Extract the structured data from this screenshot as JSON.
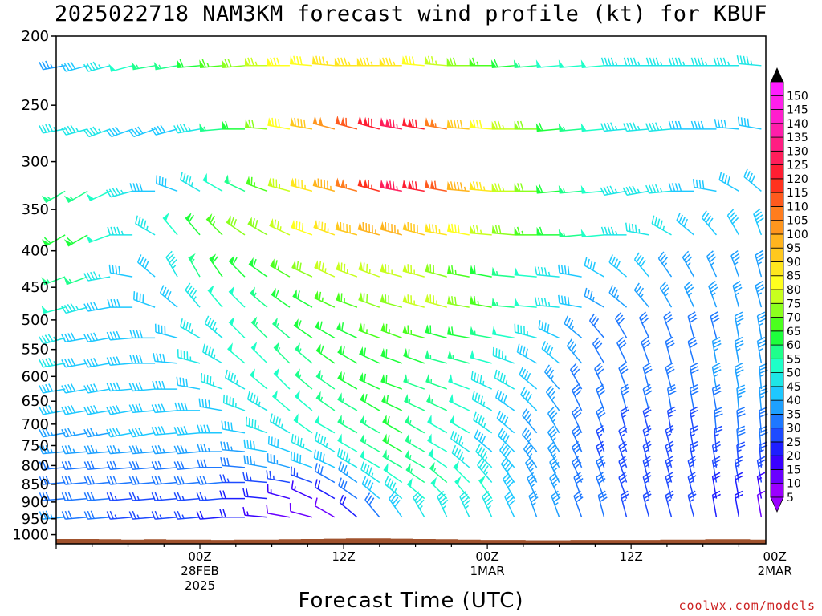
{
  "title": "2025022718 NAM3KM forecast wind profile (kt) for KBUF",
  "credit": "coolwx.com/models",
  "colors": {
    "ground": "#a0522d",
    "credit": "#cc2222"
  },
  "chart_data": {
    "type": "wind-barb-time-height",
    "xlabel": "Forecast Time (UTC)",
    "ylabel": "",
    "y_axis_reversed_log_pressure": true,
    "y_ticks": [
      "200",
      "250",
      "300",
      "350",
      "400",
      "450",
      "500",
      "550",
      "600",
      "650",
      "700",
      "750",
      "800",
      "850",
      "900",
      "950",
      "1000"
    ],
    "y_range_hPa": [
      200,
      1030
    ],
    "x_range_hours": [
      -16,
      63
    ],
    "x_ticks": [
      {
        "hour": 0,
        "lines": [
          "00Z",
          "28FEB",
          "2025"
        ]
      },
      {
        "hour": 16,
        "lines": [
          "12Z"
        ]
      },
      {
        "hour": 32,
        "lines": [
          "00Z",
          "1MAR"
        ]
      },
      {
        "hour": 48,
        "lines": [
          "12Z"
        ]
      },
      {
        "hour": 64,
        "lines": [
          "00Z",
          "2MAR"
        ]
      }
    ],
    "colorbar": {
      "units": "kt",
      "levels": [
        5,
        10,
        15,
        20,
        25,
        30,
        35,
        40,
        45,
        50,
        55,
        60,
        65,
        70,
        75,
        80,
        85,
        90,
        95,
        100,
        105,
        110,
        115,
        120,
        125,
        130,
        135,
        140,
        145,
        150
      ]
    },
    "wind_levels_hPa": [
      220,
      270,
      330,
      380,
      435,
      480,
      530,
      575,
      625,
      670,
      720,
      765,
      805,
      845,
      890,
      945
    ],
    "wind_times_hours": [
      -15,
      -12.5,
      -10,
      -7.5,
      -5,
      -2.5,
      0,
      2.5,
      5,
      7.5,
      10,
      12.5,
      15,
      17.5,
      20,
      22.5,
      25,
      27.5,
      30,
      32.5,
      35,
      37.5,
      40,
      42.5,
      45,
      47.5,
      50,
      52.5,
      55,
      57.5,
      60,
      62.5
    ],
    "wind_speed_kt_by_level": [
      [
        35,
        40,
        45,
        50,
        55,
        55,
        60,
        65,
        70,
        75,
        80,
        80,
        85,
        85,
        85,
        85,
        80,
        75,
        70,
        65,
        60,
        55,
        50,
        50,
        50,
        45,
        45,
        45,
        45,
        45,
        45,
        45
      ],
      [
        45,
        45,
        45,
        40,
        40,
        40,
        45,
        55,
        60,
        70,
        80,
        90,
        100,
        110,
        120,
        125,
        120,
        105,
        90,
        80,
        75,
        70,
        60,
        55,
        50,
        45,
        45,
        45,
        40,
        40,
        40,
        40
      ],
      [
        55,
        55,
        50,
        45,
        40,
        40,
        45,
        50,
        55,
        65,
        75,
        85,
        95,
        105,
        115,
        125,
        120,
        110,
        95,
        85,
        75,
        70,
        60,
        55,
        50,
        45,
        45,
        45,
        40,
        40,
        40,
        40
      ],
      [
        60,
        60,
        50,
        45,
        45,
        50,
        60,
        65,
        70,
        70,
        75,
        80,
        85,
        90,
        95,
        95,
        90,
        85,
        80,
        75,
        70,
        65,
        60,
        55,
        50,
        45,
        45,
        45,
        40,
        40,
        40,
        40
      ],
      [
        55,
        55,
        45,
        40,
        40,
        45,
        55,
        60,
        60,
        60,
        65,
        70,
        75,
        75,
        75,
        75,
        75,
        70,
        65,
        60,
        55,
        50,
        45,
        40,
        40,
        40,
        40,
        35,
        35,
        35,
        35,
        35
      ],
      [
        50,
        45,
        40,
        40,
        40,
        40,
        45,
        50,
        50,
        55,
        60,
        60,
        65,
        65,
        70,
        70,
        75,
        75,
        70,
        65,
        55,
        50,
        45,
        40,
        35,
        35,
        35,
        35,
        35,
        35,
        35,
        35
      ],
      [
        45,
        40,
        40,
        40,
        40,
        40,
        45,
        45,
        50,
        55,
        55,
        60,
        60,
        60,
        65,
        65,
        65,
        60,
        60,
        55,
        50,
        45,
        40,
        35,
        30,
        30,
        30,
        30,
        30,
        30,
        35,
        35
      ],
      [
        45,
        40,
        40,
        40,
        40,
        40,
        45,
        45,
        50,
        50,
        55,
        55,
        60,
        60,
        60,
        60,
        60,
        55,
        55,
        50,
        45,
        40,
        40,
        35,
        30,
        30,
        30,
        30,
        30,
        35,
        35,
        35
      ],
      [
        40,
        40,
        40,
        40,
        40,
        40,
        40,
        45,
        45,
        50,
        50,
        55,
        55,
        60,
        60,
        60,
        55,
        55,
        50,
        45,
        45,
        40,
        35,
        30,
        30,
        30,
        30,
        30,
        30,
        35,
        35,
        35
      ],
      [
        40,
        40,
        40,
        40,
        40,
        40,
        40,
        40,
        45,
        45,
        50,
        50,
        55,
        55,
        60,
        60,
        55,
        55,
        50,
        45,
        40,
        40,
        35,
        30,
        30,
        30,
        30,
        30,
        30,
        30,
        35,
        35
      ],
      [
        35,
        35,
        35,
        40,
        40,
        40,
        40,
        40,
        40,
        45,
        45,
        50,
        50,
        55,
        55,
        60,
        55,
        50,
        50,
        45,
        40,
        35,
        35,
        30,
        30,
        25,
        25,
        25,
        25,
        30,
        30,
        30
      ],
      [
        35,
        35,
        35,
        35,
        35,
        35,
        35,
        35,
        35,
        40,
        40,
        45,
        45,
        50,
        55,
        60,
        55,
        50,
        45,
        40,
        40,
        35,
        35,
        30,
        25,
        25,
        25,
        25,
        25,
        25,
        30,
        30
      ],
      [
        30,
        30,
        30,
        30,
        30,
        30,
        30,
        30,
        30,
        35,
        35,
        40,
        40,
        45,
        50,
        55,
        55,
        50,
        45,
        45,
        40,
        35,
        35,
        30,
        25,
        25,
        25,
        25,
        25,
        25,
        25,
        25
      ],
      [
        30,
        30,
        30,
        30,
        30,
        30,
        30,
        30,
        25,
        25,
        25,
        25,
        30,
        35,
        45,
        50,
        55,
        55,
        50,
        45,
        40,
        35,
        35,
        30,
        30,
        25,
        25,
        25,
        25,
        25,
        25,
        25
      ],
      [
        30,
        30,
        30,
        25,
        25,
        25,
        25,
        25,
        20,
        20,
        15,
        15,
        20,
        30,
        40,
        45,
        50,
        50,
        50,
        50,
        40,
        35,
        35,
        30,
        30,
        25,
        25,
        25,
        25,
        20,
        20,
        15
      ],
      [
        35,
        30,
        30,
        25,
        25,
        25,
        25,
        20,
        20,
        15,
        10,
        10,
        10,
        20,
        30,
        40,
        45,
        45,
        45,
        45,
        40,
        35,
        35,
        30,
        30,
        25,
        25,
        25,
        25,
        20,
        20,
        10
      ]
    ],
    "wind_dir_deg_by_level": [
      [
        260,
        255,
        255,
        255,
        260,
        260,
        265,
        265,
        265,
        270,
        270,
        275,
        275,
        270,
        270,
        270,
        275,
        275,
        270,
        270,
        265,
        265,
        265,
        265,
        265,
        270,
        270,
        270,
        270,
        270,
        270,
        275
      ],
      [
        260,
        255,
        250,
        250,
        250,
        255,
        260,
        265,
        270,
        275,
        280,
        280,
        285,
        285,
        285,
        280,
        280,
        280,
        275,
        275,
        270,
        270,
        265,
        265,
        265,
        265,
        265,
        265,
        270,
        270,
        275,
        280
      ],
      [
        240,
        240,
        245,
        255,
        270,
        290,
        300,
        300,
        295,
        290,
        285,
        285,
        285,
        285,
        285,
        280,
        280,
        280,
        275,
        275,
        270,
        270,
        265,
        265,
        265,
        260,
        260,
        265,
        270,
        280,
        300,
        310
      ],
      [
        240,
        240,
        250,
        270,
        300,
        320,
        320,
        315,
        305,
        300,
        295,
        290,
        290,
        285,
        285,
        285,
        285,
        280,
        280,
        275,
        275,
        270,
        270,
        265,
        265,
        270,
        280,
        300,
        310,
        320,
        330,
        340
      ],
      [
        250,
        250,
        260,
        280,
        310,
        330,
        330,
        325,
        315,
        305,
        300,
        295,
        295,
        290,
        290,
        285,
        285,
        285,
        280,
        280,
        275,
        275,
        275,
        280,
        300,
        310,
        320,
        325,
        330,
        335,
        340,
        345
      ],
      [
        255,
        255,
        260,
        270,
        290,
        310,
        320,
        320,
        315,
        310,
        305,
        300,
        295,
        290,
        290,
        285,
        285,
        285,
        280,
        280,
        275,
        275,
        275,
        280,
        300,
        310,
        320,
        330,
        335,
        340,
        345,
        345
      ],
      [
        255,
        260,
        260,
        265,
        270,
        285,
        300,
        310,
        315,
        315,
        310,
        305,
        300,
        295,
        290,
        290,
        285,
        285,
        280,
        280,
        280,
        285,
        295,
        310,
        320,
        330,
        335,
        340,
        345,
        345,
        350,
        350
      ],
      [
        260,
        260,
        260,
        265,
        270,
        275,
        285,
        300,
        310,
        315,
        315,
        310,
        305,
        300,
        295,
        290,
        290,
        285,
        285,
        285,
        290,
        300,
        310,
        320,
        330,
        335,
        340,
        345,
        345,
        350,
        350,
        350
      ],
      [
        260,
        260,
        260,
        265,
        265,
        270,
        280,
        290,
        300,
        310,
        315,
        310,
        305,
        300,
        295,
        290,
        290,
        290,
        290,
        295,
        300,
        310,
        320,
        330,
        335,
        340,
        345,
        345,
        350,
        350,
        350,
        355
      ],
      [
        260,
        260,
        260,
        260,
        265,
        265,
        270,
        280,
        290,
        300,
        310,
        310,
        305,
        300,
        300,
        295,
        295,
        295,
        295,
        300,
        305,
        315,
        325,
        335,
        340,
        345,
        345,
        350,
        350,
        350,
        355,
        355
      ],
      [
        260,
        260,
        260,
        260,
        260,
        265,
        265,
        270,
        280,
        290,
        300,
        305,
        300,
        300,
        300,
        300,
        300,
        300,
        300,
        305,
        310,
        320,
        330,
        335,
        340,
        345,
        345,
        350,
        350,
        355,
        355,
        355
      ],
      [
        265,
        265,
        265,
        265,
        265,
        265,
        265,
        270,
        275,
        280,
        290,
        295,
        300,
        300,
        300,
        300,
        300,
        300,
        305,
        310,
        315,
        320,
        330,
        335,
        340,
        340,
        345,
        345,
        350,
        355,
        355,
        355
      ],
      [
        265,
        265,
        265,
        265,
        265,
        265,
        265,
        270,
        275,
        280,
        285,
        290,
        295,
        300,
        300,
        300,
        300,
        305,
        310,
        315,
        320,
        325,
        330,
        335,
        340,
        340,
        345,
        345,
        350,
        350,
        355,
        355
      ],
      [
        265,
        265,
        265,
        265,
        265,
        265,
        265,
        265,
        270,
        275,
        280,
        290,
        300,
        305,
        305,
        305,
        305,
        310,
        315,
        320,
        325,
        330,
        335,
        335,
        340,
        340,
        345,
        345,
        345,
        350,
        350,
        350
      ],
      [
        265,
        265,
        265,
        265,
        265,
        265,
        265,
        265,
        270,
        275,
        285,
        295,
        300,
        305,
        310,
        310,
        310,
        315,
        320,
        325,
        330,
        335,
        335,
        340,
        340,
        340,
        345,
        345,
        345,
        350,
        350,
        350
      ],
      [
        265,
        265,
        265,
        265,
        265,
        265,
        265,
        265,
        270,
        275,
        280,
        285,
        300,
        310,
        320,
        325,
        330,
        335,
        335,
        335,
        335,
        340,
        340,
        340,
        345,
        345,
        345,
        345,
        345,
        350,
        350,
        350
      ]
    ],
    "ground_surface_pressure_hPa": [
      1014,
      1014,
      1015,
      1016,
      1015,
      1016,
      1016,
      1017,
      1016,
      1016,
      1015,
      1014,
      1013,
      1012,
      1012,
      1013,
      1014,
      1015,
      1016,
      1017,
      1017,
      1018,
      1018,
      1017,
      1017,
      1017,
      1017,
      1016,
      1016,
      1015,
      1015,
      1016
    ]
  }
}
